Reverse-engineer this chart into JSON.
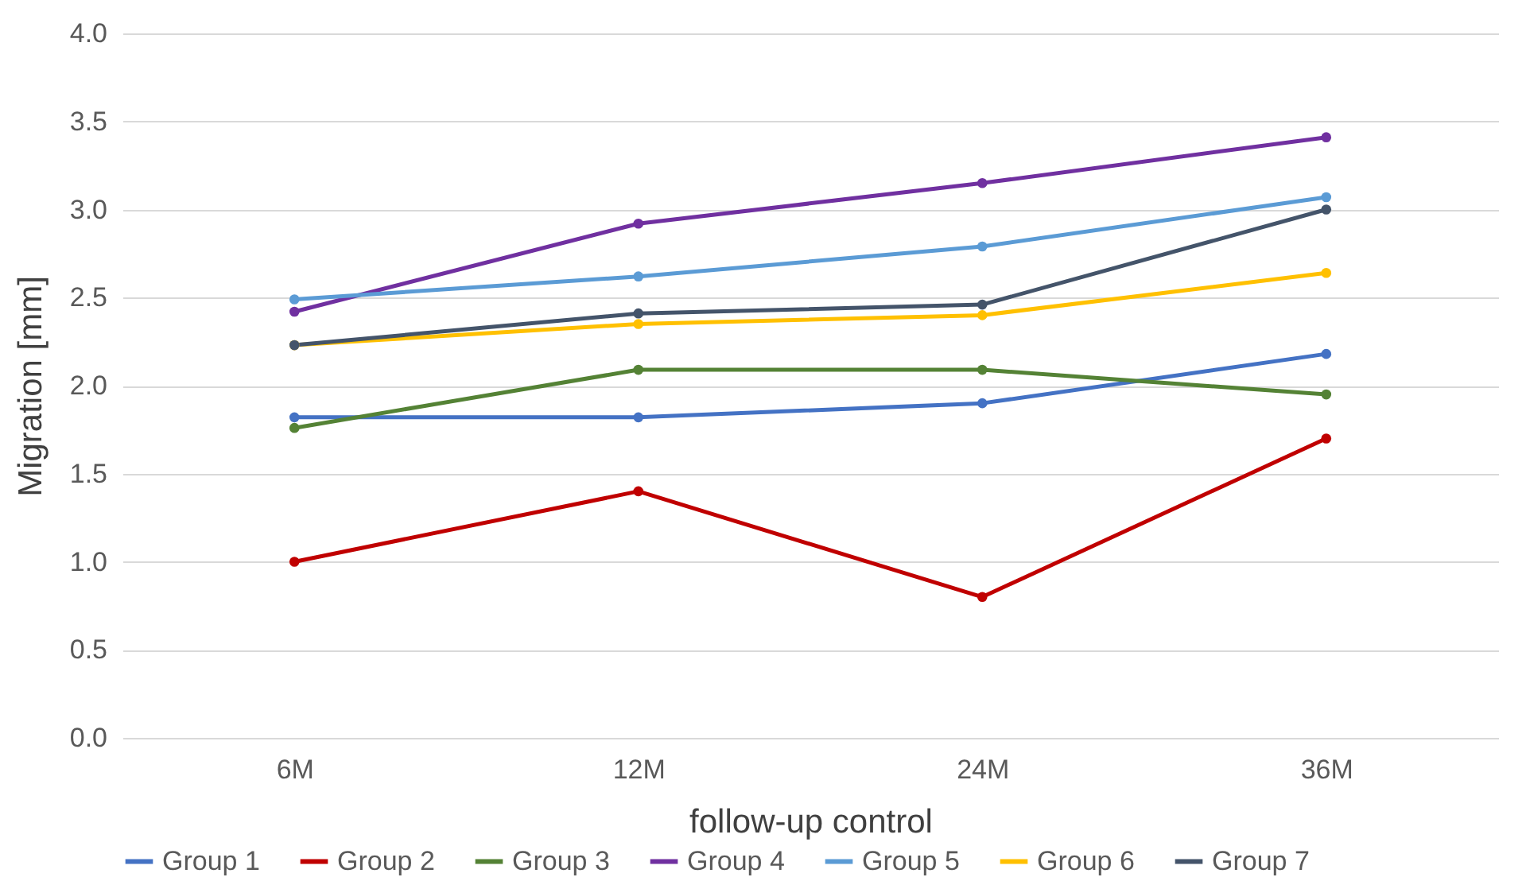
{
  "chart_data": {
    "type": "line",
    "xlabel": "follow-up control",
    "ylabel": "Migration [mm]",
    "categories": [
      "6M",
      "12M",
      "24M",
      "36M"
    ],
    "series": [
      {
        "name": "Group 1",
        "color": "#4472c4",
        "values": [
          1.82,
          1.82,
          1.9,
          2.18
        ]
      },
      {
        "name": "Group 2",
        "color": "#c00000",
        "values": [
          1.0,
          1.4,
          0.8,
          1.7
        ]
      },
      {
        "name": "Group 3",
        "color": "#548235",
        "values": [
          1.76,
          2.09,
          2.09,
          1.95
        ]
      },
      {
        "name": "Group 4",
        "color": "#7030a0",
        "values": [
          2.42,
          2.92,
          3.15,
          3.41
        ]
      },
      {
        "name": "Group 5",
        "color": "#5b9bd5",
        "values": [
          2.49,
          2.62,
          2.79,
          3.07
        ]
      },
      {
        "name": "Group 6",
        "color": "#ffc000",
        "values": [
          2.23,
          2.35,
          2.4,
          2.64
        ]
      },
      {
        "name": "Group 7",
        "color": "#44546a",
        "values": [
          2.23,
          2.41,
          2.46,
          3.0
        ]
      }
    ],
    "ylim": [
      0,
      4
    ],
    "yticks": [
      {
        "value": 0,
        "label": "0.0"
      },
      {
        "value": 0.5,
        "label": "0.5"
      },
      {
        "value": 1,
        "label": "1.0"
      },
      {
        "value": 1.5,
        "label": "1.5"
      },
      {
        "value": 2,
        "label": "2.0"
      },
      {
        "value": 2.5,
        "label": "2.5"
      },
      {
        "value": 3,
        "label": "3.0"
      },
      {
        "value": 3.5,
        "label": "3.5"
      },
      {
        "value": 4,
        "label": "4.0"
      }
    ],
    "grid": "y",
    "legend": "bottom",
    "marker": "circle",
    "line_style": "solid"
  }
}
